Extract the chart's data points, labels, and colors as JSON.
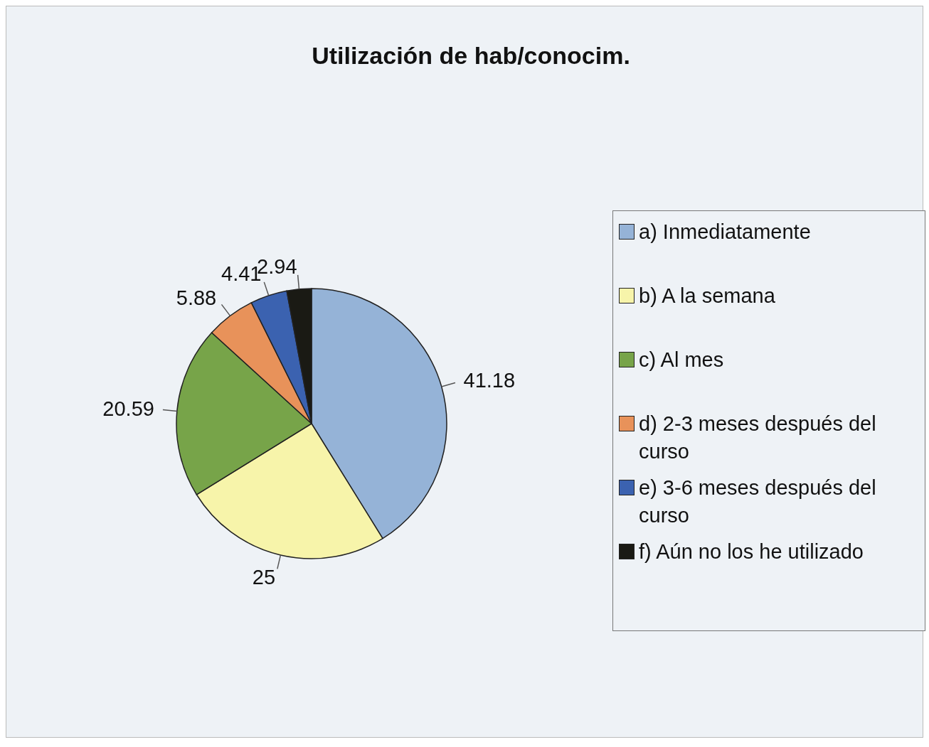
{
  "chart_data": {
    "type": "pie",
    "title": "Utilización de hab/conocim.",
    "categories": [
      "a) Inmediatamente",
      "b) A la semana",
      "c) Al mes",
      "d) 2-3 meses después del curso",
      "e) 3-6 meses después del curso",
      "f)  Aún no los he utilizado"
    ],
    "values": [
      41.18,
      25,
      20.59,
      5.88,
      4.41,
      2.94
    ],
    "colors": [
      "#95b3d7",
      "#f7f4aa",
      "#77a449",
      "#e8925a",
      "#3b62b0",
      "#1a1a14"
    ],
    "data_labels": true,
    "legend": "right"
  }
}
